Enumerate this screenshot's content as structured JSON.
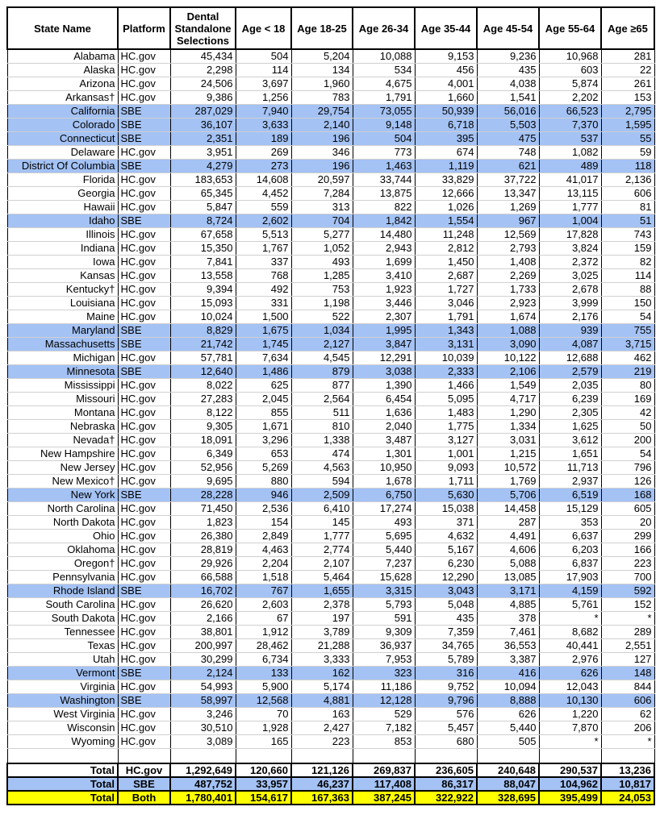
{
  "table": {
    "header": [
      "State Name",
      "Platform",
      "Dental Standalone Selections",
      "Age < 18",
      "Age 18-25",
      "Age 26-34",
      "Age 35-44",
      "Age 45-54",
      "Age 55-64",
      "Age ≥65"
    ],
    "rows": [
      {
        "cells": [
          "Alabama",
          "HC.gov",
          "45,434",
          "504",
          "5,204",
          "10,088",
          "9,153",
          "9,236",
          "10,968",
          "281"
        ]
      },
      {
        "cells": [
          "Alaska",
          "HC.gov",
          "2,298",
          "114",
          "134",
          "534",
          "456",
          "435",
          "603",
          "22"
        ]
      },
      {
        "cells": [
          "Arizona",
          "HC.gov",
          "24,506",
          "3,697",
          "1,960",
          "4,675",
          "4,001",
          "4,038",
          "5,874",
          "261"
        ]
      },
      {
        "cells": [
          "Arkansas†",
          "HC.gov",
          "9,386",
          "1,256",
          "783",
          "1,791",
          "1,660",
          "1,541",
          "2,202",
          "153"
        ]
      },
      {
        "cells": [
          "California",
          "SBE",
          "287,029",
          "7,940",
          "29,754",
          "73,055",
          "50,939",
          "56,016",
          "66,523",
          "2,795"
        ],
        "fill": "#a4c2f4"
      },
      {
        "cells": [
          "Colorado",
          "SBE",
          "36,107",
          "3,633",
          "2,140",
          "9,148",
          "6,718",
          "5,503",
          "7,370",
          "1,595"
        ],
        "fill": "#a4c2f4"
      },
      {
        "cells": [
          "Connecticut",
          "SBE",
          "2,351",
          "189",
          "196",
          "504",
          "395",
          "475",
          "537",
          "55"
        ],
        "fill": "#a4c2f4"
      },
      {
        "cells": [
          "Delaware",
          "HC.gov",
          "3,951",
          "269",
          "346",
          "773",
          "674",
          "748",
          "1,082",
          "59"
        ]
      },
      {
        "cells": [
          "District Of Columbia",
          "SBE",
          "4,279",
          "273",
          "196",
          "1,463",
          "1,119",
          "621",
          "489",
          "118"
        ],
        "fill": "#a4c2f4"
      },
      {
        "cells": [
          "Florida",
          "HC.gov",
          "183,653",
          "14,608",
          "20,597",
          "33,744",
          "33,829",
          "37,722",
          "41,017",
          "2,136"
        ]
      },
      {
        "cells": [
          "Georgia",
          "HC.gov",
          "65,345",
          "4,452",
          "7,284",
          "13,875",
          "12,666",
          "13,347",
          "13,115",
          "606"
        ]
      },
      {
        "cells": [
          "Hawaii",
          "HC.gov",
          "5,847",
          "559",
          "313",
          "822",
          "1,026",
          "1,269",
          "1,777",
          "81"
        ]
      },
      {
        "cells": [
          "Idaho",
          "SBE",
          "8,724",
          "2,602",
          "704",
          "1,842",
          "1,554",
          "967",
          "1,004",
          "51"
        ],
        "fill": "#a4c2f4"
      },
      {
        "cells": [
          "Illinois",
          "HC.gov",
          "67,658",
          "5,513",
          "5,277",
          "14,480",
          "11,248",
          "12,569",
          "17,828",
          "743"
        ]
      },
      {
        "cells": [
          "Indiana",
          "HC.gov",
          "15,350",
          "1,767",
          "1,052",
          "2,943",
          "2,812",
          "2,793",
          "3,824",
          "159"
        ]
      },
      {
        "cells": [
          "Iowa",
          "HC.gov",
          "7,841",
          "337",
          "493",
          "1,699",
          "1,450",
          "1,408",
          "2,372",
          "82"
        ]
      },
      {
        "cells": [
          "Kansas",
          "HC.gov",
          "13,558",
          "768",
          "1,285",
          "3,410",
          "2,687",
          "2,269",
          "3,025",
          "114"
        ]
      },
      {
        "cells": [
          "Kentucky†",
          "HC.gov",
          "9,394",
          "492",
          "753",
          "1,923",
          "1,727",
          "1,733",
          "2,678",
          "88"
        ]
      },
      {
        "cells": [
          "Louisiana",
          "HC.gov",
          "15,093",
          "331",
          "1,198",
          "3,446",
          "3,046",
          "2,923",
          "3,999",
          "150"
        ]
      },
      {
        "cells": [
          "Maine",
          "HC.gov",
          "10,024",
          "1,500",
          "522",
          "2,307",
          "1,791",
          "1,674",
          "2,176",
          "54"
        ]
      },
      {
        "cells": [
          "Maryland",
          "SBE",
          "8,829",
          "1,675",
          "1,034",
          "1,995",
          "1,343",
          "1,088",
          "939",
          "755"
        ],
        "fill": "#a4c2f4"
      },
      {
        "cells": [
          "Massachusetts",
          "SBE",
          "21,742",
          "1,745",
          "2,127",
          "3,847",
          "3,131",
          "3,090",
          "4,087",
          "3,715"
        ],
        "fill": "#a4c2f4"
      },
      {
        "cells": [
          "Michigan",
          "HC.gov",
          "57,781",
          "7,634",
          "4,545",
          "12,291",
          "10,039",
          "10,122",
          "12,688",
          "462"
        ]
      },
      {
        "cells": [
          "Minnesota",
          "SBE",
          "12,640",
          "1,486",
          "879",
          "3,038",
          "2,333",
          "2,106",
          "2,579",
          "219"
        ],
        "fill": "#a4c2f4"
      },
      {
        "cells": [
          "Mississippi",
          "HC.gov",
          "8,022",
          "625",
          "877",
          "1,390",
          "1,466",
          "1,549",
          "2,035",
          "80"
        ]
      },
      {
        "cells": [
          "Missouri",
          "HC.gov",
          "27,283",
          "2,045",
          "2,564",
          "6,454",
          "5,095",
          "4,717",
          "6,239",
          "169"
        ]
      },
      {
        "cells": [
          "Montana",
          "HC.gov",
          "8,122",
          "855",
          "511",
          "1,636",
          "1,483",
          "1,290",
          "2,305",
          "42"
        ]
      },
      {
        "cells": [
          "Nebraska",
          "HC.gov",
          "9,305",
          "1,671",
          "810",
          "2,040",
          "1,775",
          "1,334",
          "1,625",
          "50"
        ]
      },
      {
        "cells": [
          "Nevada†",
          "HC.gov",
          "18,091",
          "3,296",
          "1,338",
          "3,487",
          "3,127",
          "3,031",
          "3,612",
          "200"
        ]
      },
      {
        "cells": [
          "New Hampshire",
          "HC.gov",
          "6,349",
          "653",
          "474",
          "1,301",
          "1,001",
          "1,215",
          "1,651",
          "54"
        ]
      },
      {
        "cells": [
          "New Jersey",
          "HC.gov",
          "52,956",
          "5,269",
          "4,563",
          "10,950",
          "9,093",
          "10,572",
          "11,713",
          "796"
        ]
      },
      {
        "cells": [
          "New Mexico†",
          "HC.gov",
          "9,695",
          "880",
          "594",
          "1,678",
          "1,711",
          "1,769",
          "2,937",
          "126"
        ]
      },
      {
        "cells": [
          "New York",
          "SBE",
          "28,228",
          "946",
          "2,509",
          "6,750",
          "5,630",
          "5,706",
          "6,519",
          "168"
        ],
        "fill": "#a4c2f4"
      },
      {
        "cells": [
          "North Carolina",
          "HC.gov",
          "71,450",
          "2,536",
          "6,410",
          "17,274",
          "15,038",
          "14,458",
          "15,129",
          "605"
        ]
      },
      {
        "cells": [
          "North Dakota",
          "HC.gov",
          "1,823",
          "154",
          "145",
          "493",
          "371",
          "287",
          "353",
          "20"
        ]
      },
      {
        "cells": [
          "Ohio",
          "HC.gov",
          "26,380",
          "2,849",
          "1,777",
          "5,695",
          "4,632",
          "4,491",
          "6,637",
          "299"
        ]
      },
      {
        "cells": [
          "Oklahoma",
          "HC.gov",
          "28,819",
          "4,463",
          "2,774",
          "5,440",
          "5,167",
          "4,606",
          "6,203",
          "166"
        ]
      },
      {
        "cells": [
          "Oregon†",
          "HC.gov",
          "29,926",
          "2,204",
          "2,107",
          "7,237",
          "6,230",
          "5,088",
          "6,837",
          "223"
        ]
      },
      {
        "cells": [
          "Pennsylvania",
          "HC.gov",
          "66,588",
          "1,518",
          "5,464",
          "15,628",
          "12,290",
          "13,085",
          "17,903",
          "700"
        ]
      },
      {
        "cells": [
          "Rhode Island",
          "SBE",
          "16,702",
          "767",
          "1,655",
          "3,315",
          "3,043",
          "3,171",
          "4,159",
          "592"
        ],
        "fill": "#a4c2f4"
      },
      {
        "cells": [
          "South Carolina",
          "HC.gov",
          "26,620",
          "2,603",
          "2,378",
          "5,793",
          "5,048",
          "4,885",
          "5,761",
          "152"
        ]
      },
      {
        "cells": [
          "South Dakota",
          "HC.gov",
          "2,166",
          "67",
          "197",
          "591",
          "435",
          "378",
          "*",
          "*"
        ]
      },
      {
        "cells": [
          "Tennessee",
          "HC.gov",
          "38,801",
          "1,912",
          "3,789",
          "9,309",
          "7,359",
          "7,461",
          "8,682",
          "289"
        ]
      },
      {
        "cells": [
          "Texas",
          "HC.gov",
          "200,997",
          "28,462",
          "21,288",
          "36,937",
          "34,765",
          "36,553",
          "40,441",
          "2,551"
        ]
      },
      {
        "cells": [
          "Utah",
          "HC.gov",
          "30,299",
          "6,734",
          "3,333",
          "7,953",
          "5,789",
          "3,387",
          "2,976",
          "127"
        ]
      },
      {
        "cells": [
          "Vermont",
          "SBE",
          "2,124",
          "133",
          "162",
          "323",
          "316",
          "416",
          "626",
          "148"
        ],
        "fill": "#a4c2f4"
      },
      {
        "cells": [
          "Virginia",
          "HC.gov",
          "54,993",
          "5,900",
          "5,174",
          "11,186",
          "9,752",
          "10,094",
          "12,043",
          "844"
        ]
      },
      {
        "cells": [
          "Washington",
          "SBE",
          "58,997",
          "12,568",
          "4,881",
          "12,128",
          "9,796",
          "8,888",
          "10,130",
          "606"
        ],
        "fill": "#a4c2f4"
      },
      {
        "cells": [
          "West Virginia",
          "HC.gov",
          "3,246",
          "70",
          "163",
          "529",
          "576",
          "626",
          "1,220",
          "62"
        ]
      },
      {
        "cells": [
          "Wisconsin",
          "HC.gov",
          "30,510",
          "1,928",
          "2,427",
          "7,182",
          "5,457",
          "5,440",
          "7,870",
          "206"
        ]
      },
      {
        "cells": [
          "Wyoming",
          "HC.gov",
          "3,089",
          "165",
          "223",
          "853",
          "680",
          "505",
          "*",
          "*"
        ]
      }
    ],
    "totals": [
      {
        "cells": [
          "Total",
          "HC.gov",
          "1,292,649",
          "120,660",
          "121,126",
          "269,837",
          "236,605",
          "240,648",
          "290,537",
          "13,236"
        ]
      },
      {
        "cells": [
          "Total",
          "SBE",
          "487,752",
          "33,957",
          "46,237",
          "117,408",
          "86,317",
          "88,047",
          "104,962",
          "10,817"
        ],
        "fill": "#a4c2f4"
      },
      {
        "cells": [
          "Total",
          "Both",
          "1,780,401",
          "154,617",
          "167,363",
          "387,245",
          "322,922",
          "328,695",
          "395,499",
          "24,053"
        ],
        "fill": "#ffff00"
      }
    ]
  }
}
